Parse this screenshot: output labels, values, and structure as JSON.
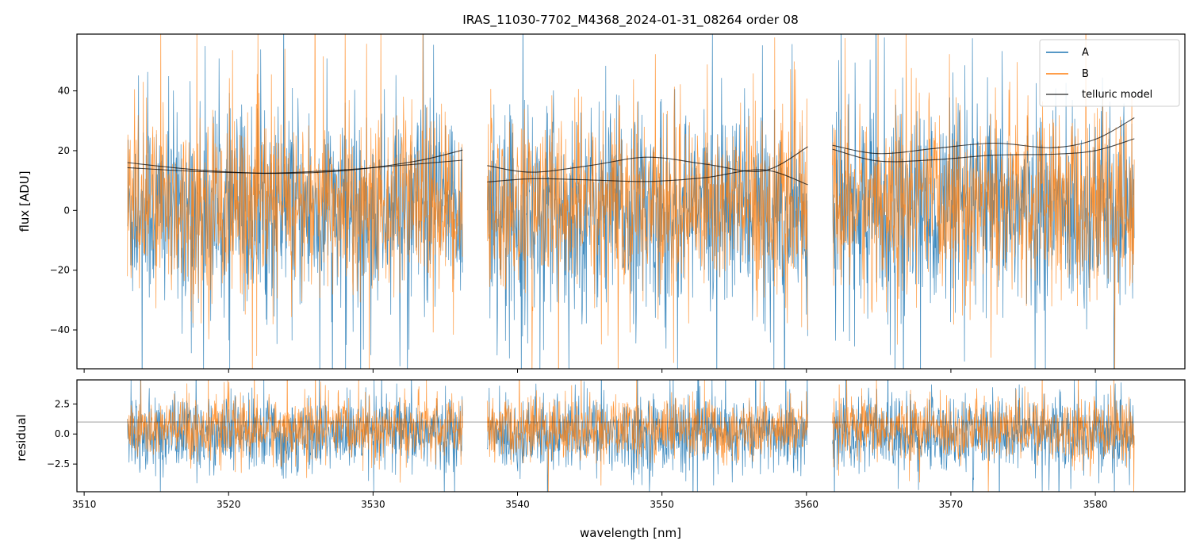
{
  "chart_data": {
    "type": "line",
    "title": "IRAS_11030-7702_M4368_2024-01-31_08264  order 08",
    "xlabel": "wavelength [nm]",
    "xlim": [
      3509.5,
      3586.2
    ],
    "xticks": [
      3510,
      3520,
      3530,
      3540,
      3550,
      3560,
      3570,
      3580
    ],
    "segments": [
      [
        3513.0,
        3536.2
      ],
      [
        3537.9,
        3560.1
      ],
      [
        3561.8,
        3582.7
      ]
    ],
    "colors": {
      "A": "#1f77b4",
      "B": "#ff7f0e",
      "model": "#000000"
    },
    "legend_position": "top-right",
    "legend": [
      "A",
      "B",
      "telluric model"
    ],
    "panels": [
      {
        "name": "flux",
        "ylabel": "flux [ADU]",
        "ylim": [
          -53,
          59
        ],
        "yticks": [
          -40,
          -20,
          0,
          20,
          40
        ],
        "noise": {
          "A": {
            "center": 0,
            "sigma": 17
          },
          "B": {
            "center": 2,
            "sigma": 15
          }
        },
        "telluric_model": [
          {
            "segment": 0,
            "x": [
              3513.0,
              3518,
              3523,
              3528,
              3533,
              3536.2
            ],
            "y": [
              16.0,
              13.5,
              12.4,
              13.3,
              16.5,
              20.2
            ]
          },
          {
            "segment": 0,
            "x": [
              3513.0,
              3518,
              3523,
              3528,
              3533,
              3536.2
            ],
            "y": [
              14.3,
              13.0,
              12.5,
              13.6,
              15.5,
              16.8
            ]
          },
          {
            "segment": 1,
            "x": [
              3537.9,
              3541,
              3545,
              3549,
              3553,
              3557,
              3560.1
            ],
            "y": [
              15.0,
              12.8,
              15.0,
              17.8,
              15.5,
              13.2,
              21.3
            ]
          },
          {
            "segment": 1,
            "x": [
              3537.9,
              3541,
              3545,
              3549,
              3553,
              3557,
              3560.1
            ],
            "y": [
              9.5,
              10.6,
              10.2,
              9.7,
              11.0,
              13.6,
              8.6
            ]
          },
          {
            "segment": 2,
            "x": [
              3561.8,
              3565,
              3569,
              3573,
              3577,
              3580,
              3582.7
            ],
            "y": [
              21.8,
              19.0,
              20.8,
              22.5,
              21.0,
              23.8,
              31.0
            ]
          },
          {
            "segment": 2,
            "x": [
              3561.8,
              3565,
              3569,
              3573,
              3577,
              3580,
              3582.7
            ],
            "y": [
              20.5,
              16.5,
              17.0,
              18.5,
              18.8,
              20.0,
              24.0
            ]
          }
        ]
      },
      {
        "name": "residual",
        "ylabel": "residual",
        "ylim": [
          -4.8,
          4.5
        ],
        "yticks": [
          -2.5,
          0.0,
          2.5
        ],
        "yticklabels": [
          "−2.5",
          "0.0",
          "2.5"
        ],
        "hline": 1.0,
        "noise": {
          "A": {
            "center": 0,
            "sigma": 1.6
          },
          "B": {
            "center": 0.4,
            "sigma": 1.3
          }
        }
      }
    ]
  }
}
